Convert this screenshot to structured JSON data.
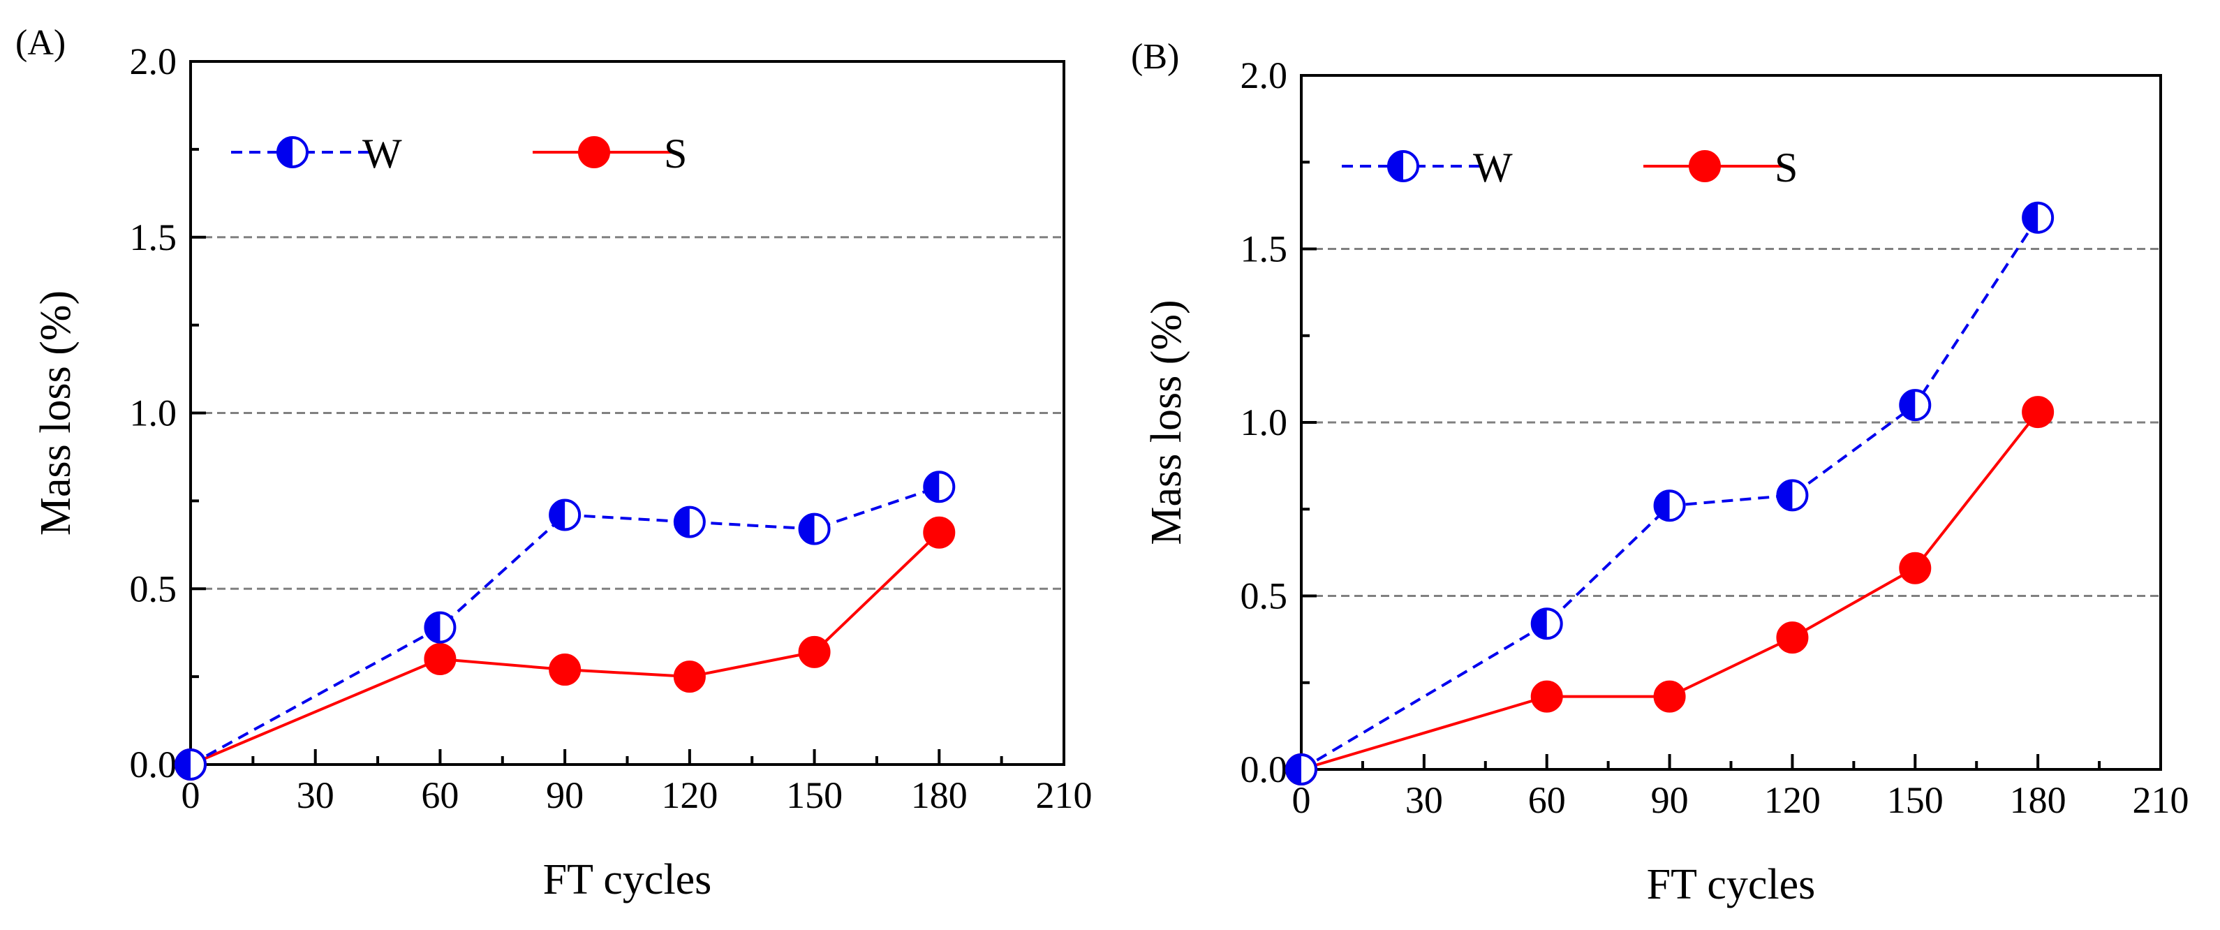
{
  "chart_data": [
    {
      "type": "line",
      "panel_label": "(A)",
      "xlabel": "FT cycles",
      "ylabel": "Mass loss (%)",
      "xlim": [
        0,
        210
      ],
      "ylim": [
        0,
        2.0
      ],
      "x_ticks": [
        "0",
        "30",
        "60",
        "90",
        "120",
        "150",
        "180",
        "210"
      ],
      "y_ticks": [
        "0.0",
        "0.5",
        "1.0",
        "1.5",
        "2.0"
      ],
      "grid": "horizontal dashed at 0.5, 1.0, 1.5",
      "legend_placement": "top-left",
      "series": [
        {
          "name": "W",
          "color": "#0000ee",
          "line_style": "dashed",
          "marker": "half-filled circle",
          "x": [
            0,
            60,
            90,
            120,
            150,
            180
          ],
          "y": [
            0.0,
            0.39,
            0.71,
            0.69,
            0.67,
            0.79
          ]
        },
        {
          "name": "S",
          "color": "#ff0000",
          "line_style": "solid",
          "marker": "filled circle",
          "x": [
            0,
            60,
            90,
            120,
            150,
            180
          ],
          "y": [
            0.0,
            0.3,
            0.27,
            0.25,
            0.32,
            0.66
          ]
        }
      ]
    },
    {
      "type": "line",
      "panel_label": "(B)",
      "xlabel": "FT cycles",
      "ylabel": "Mass loss (%)",
      "xlim": [
        0,
        210
      ],
      "ylim": [
        0,
        2.0
      ],
      "x_ticks": [
        "0",
        "30",
        "60",
        "90",
        "120",
        "150",
        "180",
        "210"
      ],
      "y_ticks": [
        "0.0",
        "0.5",
        "1.0",
        "1.5",
        "2.0"
      ],
      "grid": "horizontal dashed at 0.5, 1.0, 1.5",
      "legend_placement": "top-left",
      "series": [
        {
          "name": "W",
          "color": "#0000ee",
          "line_style": "dashed",
          "marker": "half-filled circle",
          "x": [
            0,
            60,
            90,
            120,
            150,
            180
          ],
          "y": [
            0.0,
            0.42,
            0.76,
            0.79,
            1.05,
            1.59
          ]
        },
        {
          "name": "S",
          "color": "#ff0000",
          "line_style": "solid",
          "marker": "filled circle",
          "x": [
            0,
            60,
            90,
            120,
            150,
            180
          ],
          "y": [
            0.0,
            0.21,
            0.21,
            0.38,
            0.58,
            1.03
          ]
        }
      ]
    }
  ]
}
